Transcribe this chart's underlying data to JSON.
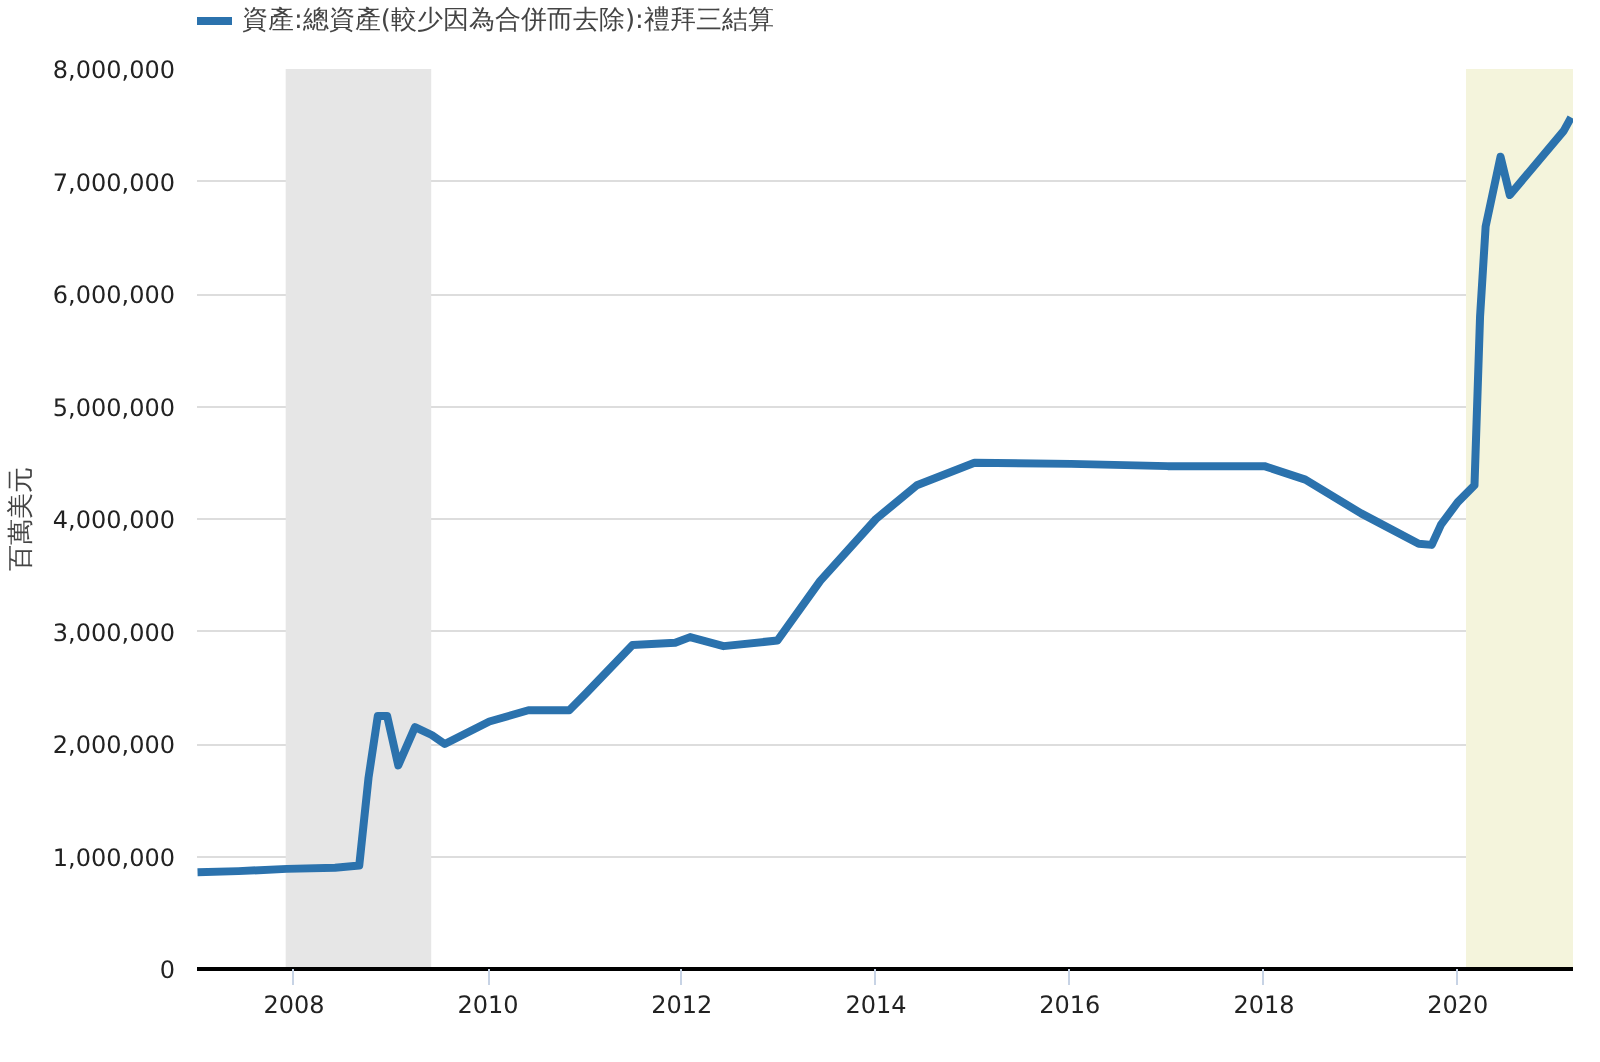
{
  "chart_data": {
    "type": "line",
    "ylabel": "百萬美元",
    "legend": "top left",
    "grid": "y",
    "line_style": "solid",
    "xlim": [
      "2007-01-01",
      "2021-03-10"
    ],
    "ylim": [
      0,
      8000000
    ],
    "xticks": [
      "2008",
      "2010",
      "2012",
      "2014",
      "2016",
      "2018",
      "2020"
    ],
    "yticks": [
      {
        "value": 0,
        "label": "0"
      },
      {
        "value": 1000000,
        "label": "1,000,000"
      },
      {
        "value": 2000000,
        "label": "2,000,000"
      },
      {
        "value": 3000000,
        "label": "3,000,000"
      },
      {
        "value": 4000000,
        "label": "4,000,000"
      },
      {
        "value": 5000000,
        "label": "5,000,000"
      },
      {
        "value": 6000000,
        "label": "6,000,000"
      },
      {
        "value": 7000000,
        "label": "7,000,000"
      },
      {
        "value": 8000000,
        "label": "8,000,000"
      }
    ],
    "bands": [
      {
        "axis": "x",
        "from": "2007-12-01",
        "to": "2009-06-01",
        "color": "#e6e6e6"
      },
      {
        "axis": "x",
        "from": "2020-02-01",
        "to": "2021-03-10",
        "color": "#f4f4dc"
      }
    ],
    "series": [
      {
        "name": "資產:總資產(較少因為合併而去除):禮拜三結算",
        "color": "#2b72ad",
        "x": [
          "2007-01-03",
          "2007-06-06",
          "2007-12-05",
          "2008-06-04",
          "2008-09-03",
          "2008-10-08",
          "2008-11-12",
          "2008-12-17",
          "2009-01-28",
          "2009-04-01",
          "2009-06-03",
          "2009-07-22",
          "2010-01-06",
          "2010-06-02",
          "2010-11-03",
          "2011-01-05",
          "2011-06-29",
          "2011-12-07",
          "2012-02-01",
          "2012-06-06",
          "2012-12-26",
          "2013-06-05",
          "2014-01-01",
          "2014-06-04",
          "2015-01-07",
          "2016-01-06",
          "2017-01-04",
          "2018-01-03",
          "2018-06-06",
          "2019-01-02",
          "2019-08-07",
          "2019-09-25",
          "2019-10-30",
          "2020-01-01",
          "2020-03-04",
          "2020-03-25",
          "2020-04-15",
          "2020-06-10",
          "2020-07-15",
          "2021-02-03",
          "2021-03-03"
        ],
        "values": [
          860000,
          870000,
          890000,
          900000,
          920000,
          1700000,
          2250000,
          2250000,
          1810000,
          2150000,
          2080000,
          2000000,
          2200000,
          2300000,
          2300000,
          2450000,
          2880000,
          2900000,
          2950000,
          2870000,
          2920000,
          3450000,
          4000000,
          4300000,
          4500000,
          4490000,
          4470000,
          4470000,
          4350000,
          4050000,
          3780000,
          3770000,
          3950000,
          4150000,
          4300000,
          5800000,
          6600000,
          7220000,
          6880000,
          7450000,
          7570000
        ]
      }
    ]
  }
}
